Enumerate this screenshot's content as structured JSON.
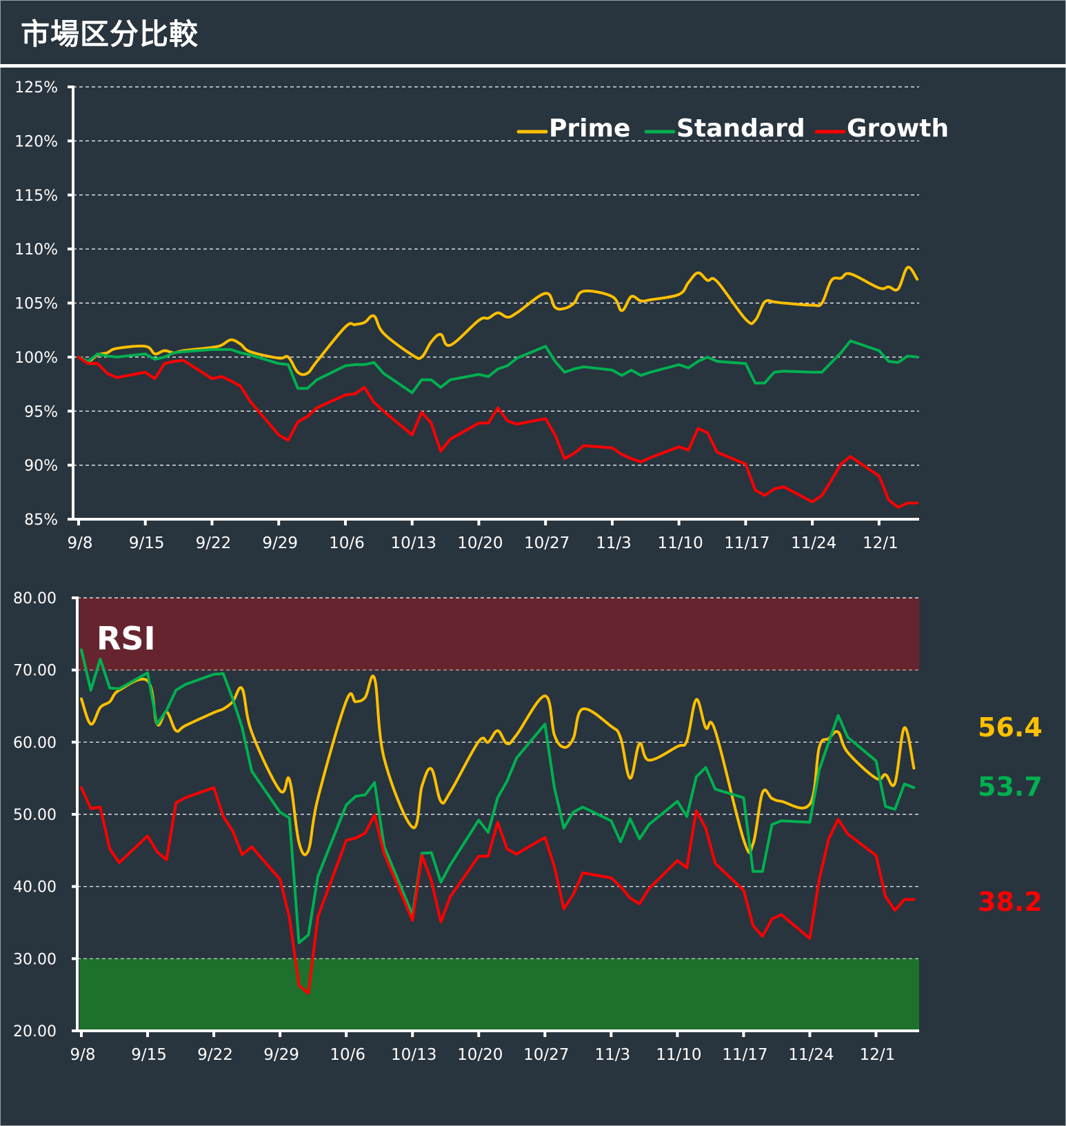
{
  "header": {
    "title": "市場区分比較"
  },
  "colors": {
    "background": "#28343e",
    "prime": "#ffc000",
    "standard": "#00b050",
    "growth": "#ff0000",
    "overbought_band": "#66252e",
    "oversold_band": "#1d712d",
    "grid": "#ffffff",
    "axis": "#ffffff"
  },
  "chart_data": [
    {
      "type": "line",
      "title": "",
      "name": "relative-performance",
      "xlabel": "",
      "ylabel": "",
      "ylim": [
        85,
        125
      ],
      "yticks": [
        85,
        90,
        95,
        100,
        105,
        110,
        115,
        120,
        125
      ],
      "ytick_labels": [
        "85%",
        "90%",
        "95%",
        "100%",
        "105%",
        "110%",
        "115%",
        "120%",
        "125%"
      ],
      "xtick_labels": [
        "9/8",
        "9/15",
        "9/22",
        "9/29",
        "10/6",
        "10/13",
        "10/20",
        "10/27",
        "11/3",
        "11/10",
        "11/17",
        "11/24",
        "12/1"
      ],
      "grid": true,
      "legend_position": "top-right",
      "x_unit": "days since 9/8",
      "x": [
        0,
        1,
        2,
        3,
        4,
        7,
        8,
        9,
        10,
        11,
        14,
        15,
        16,
        17,
        18,
        21,
        22,
        23,
        24,
        25,
        28,
        29,
        30,
        31,
        32,
        35,
        36,
        37,
        38,
        39,
        42,
        43,
        44,
        45,
        46,
        49,
        50,
        51,
        52,
        53,
        56,
        57,
        58,
        59,
        60,
        63,
        64,
        65,
        66,
        67,
        70,
        71,
        72,
        73,
        74,
        77,
        78,
        79,
        80,
        81,
        84,
        85,
        86,
        87,
        88
      ],
      "series": [
        {
          "name": "Prime",
          "color_key": "prime",
          "values": [
            100.0,
            99.6,
            100.2,
            100.4,
            100.8,
            101.0,
            100.3,
            100.6,
            100.4,
            100.6,
            100.9,
            101.1,
            101.6,
            101.2,
            100.5,
            99.9,
            100.0,
            98.6,
            98.5,
            99.6,
            102.8,
            103.0,
            103.2,
            103.8,
            102.2,
            100.2,
            100.0,
            101.4,
            102.1,
            101.1,
            103.4,
            103.6,
            104.1,
            103.7,
            104.1,
            105.9,
            104.6,
            104.5,
            105.0,
            106.1,
            105.6,
            104.3,
            105.6,
            105.2,
            105.3,
            105.8,
            106.9,
            107.8,
            107.1,
            107.0,
            103.5,
            103.4,
            105.1,
            105.1,
            105.0,
            104.8,
            105.0,
            107.1,
            107.3,
            107.7,
            106.4,
            106.5,
            106.3,
            108.3,
            107.2
          ]
        },
        {
          "name": "Standard",
          "color_key": "standard",
          "values": [
            100.0,
            99.6,
            100.3,
            100.1,
            100.0,
            100.3,
            99.8,
            100.0,
            100.4,
            100.5,
            100.7,
            100.7,
            100.7,
            100.4,
            100.2,
            99.4,
            99.3,
            97.1,
            97.1,
            97.9,
            99.2,
            99.3,
            99.3,
            99.5,
            98.5,
            96.7,
            97.9,
            97.9,
            97.2,
            97.9,
            98.4,
            98.2,
            98.9,
            99.2,
            99.9,
            101.0,
            99.6,
            98.6,
            98.9,
            99.1,
            98.8,
            98.3,
            98.8,
            98.3,
            98.6,
            99.3,
            99.0,
            99.6,
            100.0,
            99.6,
            99.4,
            97.6,
            97.6,
            98.6,
            98.7,
            98.6,
            98.6,
            99.5,
            100.4,
            101.5,
            100.6,
            99.6,
            99.5,
            100.1,
            100.0
          ]
        },
        {
          "name": "Growth",
          "color_key": "growth",
          "values": [
            100.0,
            99.4,
            99.4,
            98.5,
            98.1,
            98.6,
            98.0,
            99.4,
            99.6,
            99.7,
            98.0,
            98.2,
            97.8,
            97.3,
            95.9,
            92.8,
            92.3,
            94.0,
            94.5,
            95.3,
            96.5,
            96.6,
            97.2,
            95.8,
            95.0,
            92.8,
            94.9,
            93.9,
            91.3,
            92.4,
            93.9,
            93.9,
            95.3,
            94.1,
            93.8,
            94.3,
            92.8,
            90.6,
            91.1,
            91.8,
            91.6,
            91.0,
            90.6,
            90.3,
            90.7,
            91.7,
            91.4,
            93.4,
            93.0,
            91.2,
            90.1,
            87.7,
            87.2,
            87.8,
            88.0,
            86.6,
            87.2,
            88.6,
            90.1,
            90.8,
            89.0,
            86.8,
            86.1,
            86.5,
            86.5
          ]
        }
      ]
    },
    {
      "type": "line",
      "title": "RSI",
      "name": "rsi",
      "xlabel": "",
      "ylabel": "",
      "ylim": [
        20,
        80
      ],
      "yticks": [
        20,
        30,
        40,
        50,
        60,
        70,
        80
      ],
      "ytick_labels": [
        "20.00",
        "30.00",
        "40.00",
        "50.00",
        "60.00",
        "70.00",
        "80.00"
      ],
      "xtick_labels": [
        "9/8",
        "9/15",
        "9/22",
        "9/29",
        "10/6",
        "10/13",
        "10/20",
        "10/27",
        "11/3",
        "11/10",
        "11/17",
        "11/24",
        "12/1"
      ],
      "grid": true,
      "bands": [
        {
          "name": "overbought",
          "from": 70,
          "to": 80,
          "color_key": "overbought_band"
        },
        {
          "name": "oversold",
          "from": 20,
          "to": 30,
          "color_key": "oversold_band"
        }
      ],
      "x_unit": "days since 9/8",
      "x": [
        0,
        1,
        2,
        3,
        4,
        7,
        8,
        9,
        10,
        11,
        14,
        15,
        16,
        17,
        18,
        21,
        22,
        23,
        24,
        25,
        28,
        29,
        30,
        31,
        32,
        35,
        36,
        37,
        38,
        39,
        42,
        43,
        44,
        45,
        46,
        49,
        50,
        51,
        52,
        53,
        56,
        57,
        58,
        59,
        60,
        63,
        64,
        65,
        66,
        67,
        70,
        71,
        72,
        73,
        74,
        77,
        78,
        79,
        80,
        81,
        84,
        85,
        86,
        87,
        88
      ],
      "series": [
        {
          "name": "Prime",
          "color_key": "prime",
          "values": [
            66.0,
            62.5,
            64.8,
            65.6,
            67.2,
            68.5,
            62.5,
            64.2,
            61.6,
            62.3,
            64.1,
            64.6,
            65.6,
            67.4,
            61.4,
            53.3,
            54.8,
            46.1,
            45.0,
            52.2,
            65.7,
            65.6,
            66.2,
            68.8,
            57.8,
            48.2,
            53.9,
            56.3,
            51.8,
            53.1,
            60.1,
            60.0,
            61.6,
            59.8,
            61.0,
            66.4,
            61.0,
            59.3,
            60.5,
            64.6,
            62.2,
            60.6,
            55.0,
            59.8,
            57.5,
            59.4,
            60.2,
            65.9,
            62.0,
            61.6,
            46.5,
            45.9,
            53.0,
            52.2,
            51.8,
            51.4,
            59.3,
            60.5,
            61.4,
            58.6,
            55.0,
            55.5,
            54.3,
            62.0,
            56.4
          ]
        },
        {
          "name": "Standard",
          "color_key": "standard",
          "values": [
            72.8,
            67.2,
            71.5,
            67.5,
            67.4,
            69.6,
            62.5,
            64.4,
            67.2,
            68.0,
            69.4,
            69.5,
            66.0,
            62.0,
            56.0,
            50.3,
            49.5,
            32.2,
            33.3,
            41.4,
            51.3,
            52.5,
            52.7,
            54.4,
            45.6,
            36.1,
            44.6,
            44.7,
            40.6,
            43.0,
            49.2,
            47.5,
            52.3,
            54.6,
            57.8,
            62.5,
            53.7,
            48.1,
            50.3,
            51.0,
            49.1,
            46.2,
            49.4,
            46.6,
            48.6,
            51.8,
            49.7,
            55.2,
            56.5,
            53.5,
            52.3,
            42.1,
            42.1,
            48.6,
            49.1,
            48.9,
            56.2,
            60.0,
            63.7,
            60.7,
            57.4,
            51.1,
            50.7,
            54.2,
            53.7
          ]
        },
        {
          "name": "Growth",
          "color_key": "growth",
          "values": [
            53.7,
            50.8,
            51.0,
            45.2,
            43.3,
            47.0,
            44.8,
            43.7,
            51.6,
            52.3,
            53.7,
            49.7,
            47.7,
            44.4,
            45.5,
            41.0,
            35.7,
            26.3,
            25.2,
            35.8,
            46.4,
            46.7,
            47.4,
            49.9,
            44.6,
            35.3,
            44.3,
            40.8,
            35.1,
            38.6,
            44.2,
            44.2,
            48.9,
            45.2,
            44.5,
            46.8,
            42.8,
            36.9,
            38.9,
            41.9,
            41.2,
            40.0,
            38.4,
            37.6,
            39.7,
            43.6,
            42.6,
            50.5,
            48.1,
            43.2,
            39.5,
            34.6,
            33.1,
            35.5,
            36.1,
            32.8,
            41.0,
            46.6,
            49.3,
            47.3,
            44.3,
            38.6,
            36.7,
            38.2,
            38.2
          ]
        }
      ],
      "last_values": [
        {
          "series": "Prime",
          "label": "56.4",
          "color_key": "prime"
        },
        {
          "series": "Standard",
          "label": "53.7",
          "color_key": "standard"
        },
        {
          "series": "Growth",
          "label": "38.2",
          "color_key": "growth"
        }
      ]
    }
  ]
}
